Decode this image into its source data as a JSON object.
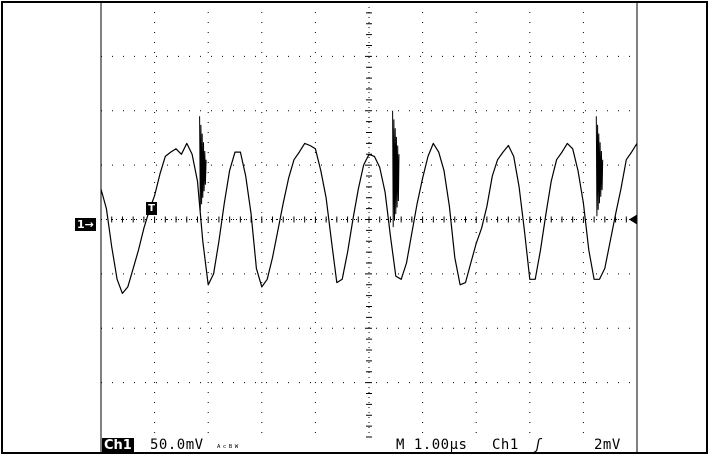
{
  "chart_data": {
    "type": "line",
    "title": "",
    "xlabel": "",
    "ylabel": "",
    "grid": true,
    "x_divisions": 10,
    "y_divisions": 8,
    "x_unit": "µs",
    "y_unit": "mV",
    "series": [
      {
        "color": "#000000",
        "x": [
          0.0,
          0.1,
          0.2,
          0.3,
          0.4,
          0.5,
          0.6,
          0.7,
          0.8,
          0.9,
          1.0,
          1.1,
          1.2,
          1.3,
          1.4,
          1.5,
          1.6,
          1.7,
          1.8,
          1.9,
          2.0,
          2.1,
          2.2,
          2.3,
          2.4,
          2.5,
          2.6,
          2.7,
          2.8,
          2.9,
          3.0,
          3.1,
          3.2,
          3.3,
          3.4,
          3.5,
          3.6,
          3.7,
          3.8,
          3.9,
          4.0,
          4.1,
          4.2,
          4.3,
          4.4,
          4.5,
          4.6,
          4.7,
          4.8,
          4.9,
          5.0,
          5.1,
          5.2,
          5.3,
          5.4,
          5.5,
          5.6,
          5.7,
          5.8,
          5.9,
          6.0,
          6.1,
          6.2,
          6.3,
          6.4,
          6.5,
          6.6,
          6.7,
          6.8,
          6.9,
          7.0,
          7.1,
          7.2,
          7.3,
          7.4,
          7.5,
          7.6,
          7.7,
          7.8,
          7.9,
          8.0,
          8.1,
          8.2,
          8.3,
          8.4,
          8.5,
          8.6,
          8.7,
          8.8,
          8.9,
          9.0,
          9.1,
          9.2,
          9.3,
          9.4,
          9.5,
          9.6,
          9.7,
          9.8,
          9.9,
          10.0
        ],
        "y": [
          28,
          10,
          -25,
          -55,
          -68,
          -62,
          -45,
          -28,
          -8,
          8,
          22,
          42,
          58,
          62,
          65,
          60,
          70,
          60,
          35,
          -20,
          -60,
          -50,
          -20,
          15,
          45,
          62,
          62,
          40,
          5,
          -45,
          -62,
          -55,
          -35,
          -10,
          15,
          38,
          55,
          62,
          70,
          68,
          65,
          45,
          20,
          -20,
          -58,
          -55,
          -30,
          0,
          28,
          50,
          60,
          58,
          48,
          25,
          -15,
          -52,
          -55,
          -40,
          -12,
          15,
          38,
          58,
          70,
          62,
          45,
          12,
          -35,
          -60,
          -58,
          -40,
          -22,
          -8,
          12,
          40,
          55,
          62,
          68,
          58,
          30,
          -10,
          -55,
          -55,
          -28,
          5,
          35,
          55,
          62,
          70,
          65,
          45,
          15,
          -28,
          -55,
          -55,
          -45,
          -20,
          5,
          28,
          55,
          62,
          70
        ]
      }
    ],
    "spikes": [
      {
        "x": 1.9,
        "y_min": 5,
        "y_max": 95
      },
      {
        "x": 5.5,
        "y_min": -10,
        "y_max": 100
      },
      {
        "x": 9.3,
        "y_min": 0,
        "y_max": 95
      }
    ],
    "y_per_div": 50,
    "ylim": [
      -200,
      200
    ],
    "xlim": [
      0,
      10
    ]
  },
  "scope": {
    "channel_label": "Ch1",
    "volts_per_div": "50.0mV",
    "bw_symbol": "ᴬᶜᴮᵂ",
    "timebase": "M 1.00µs",
    "trigger_source": "Ch1",
    "trigger_slope": "ʃ",
    "trigger_level": "2mV",
    "channel_marker": "1→",
    "trigger_marker": "T"
  }
}
